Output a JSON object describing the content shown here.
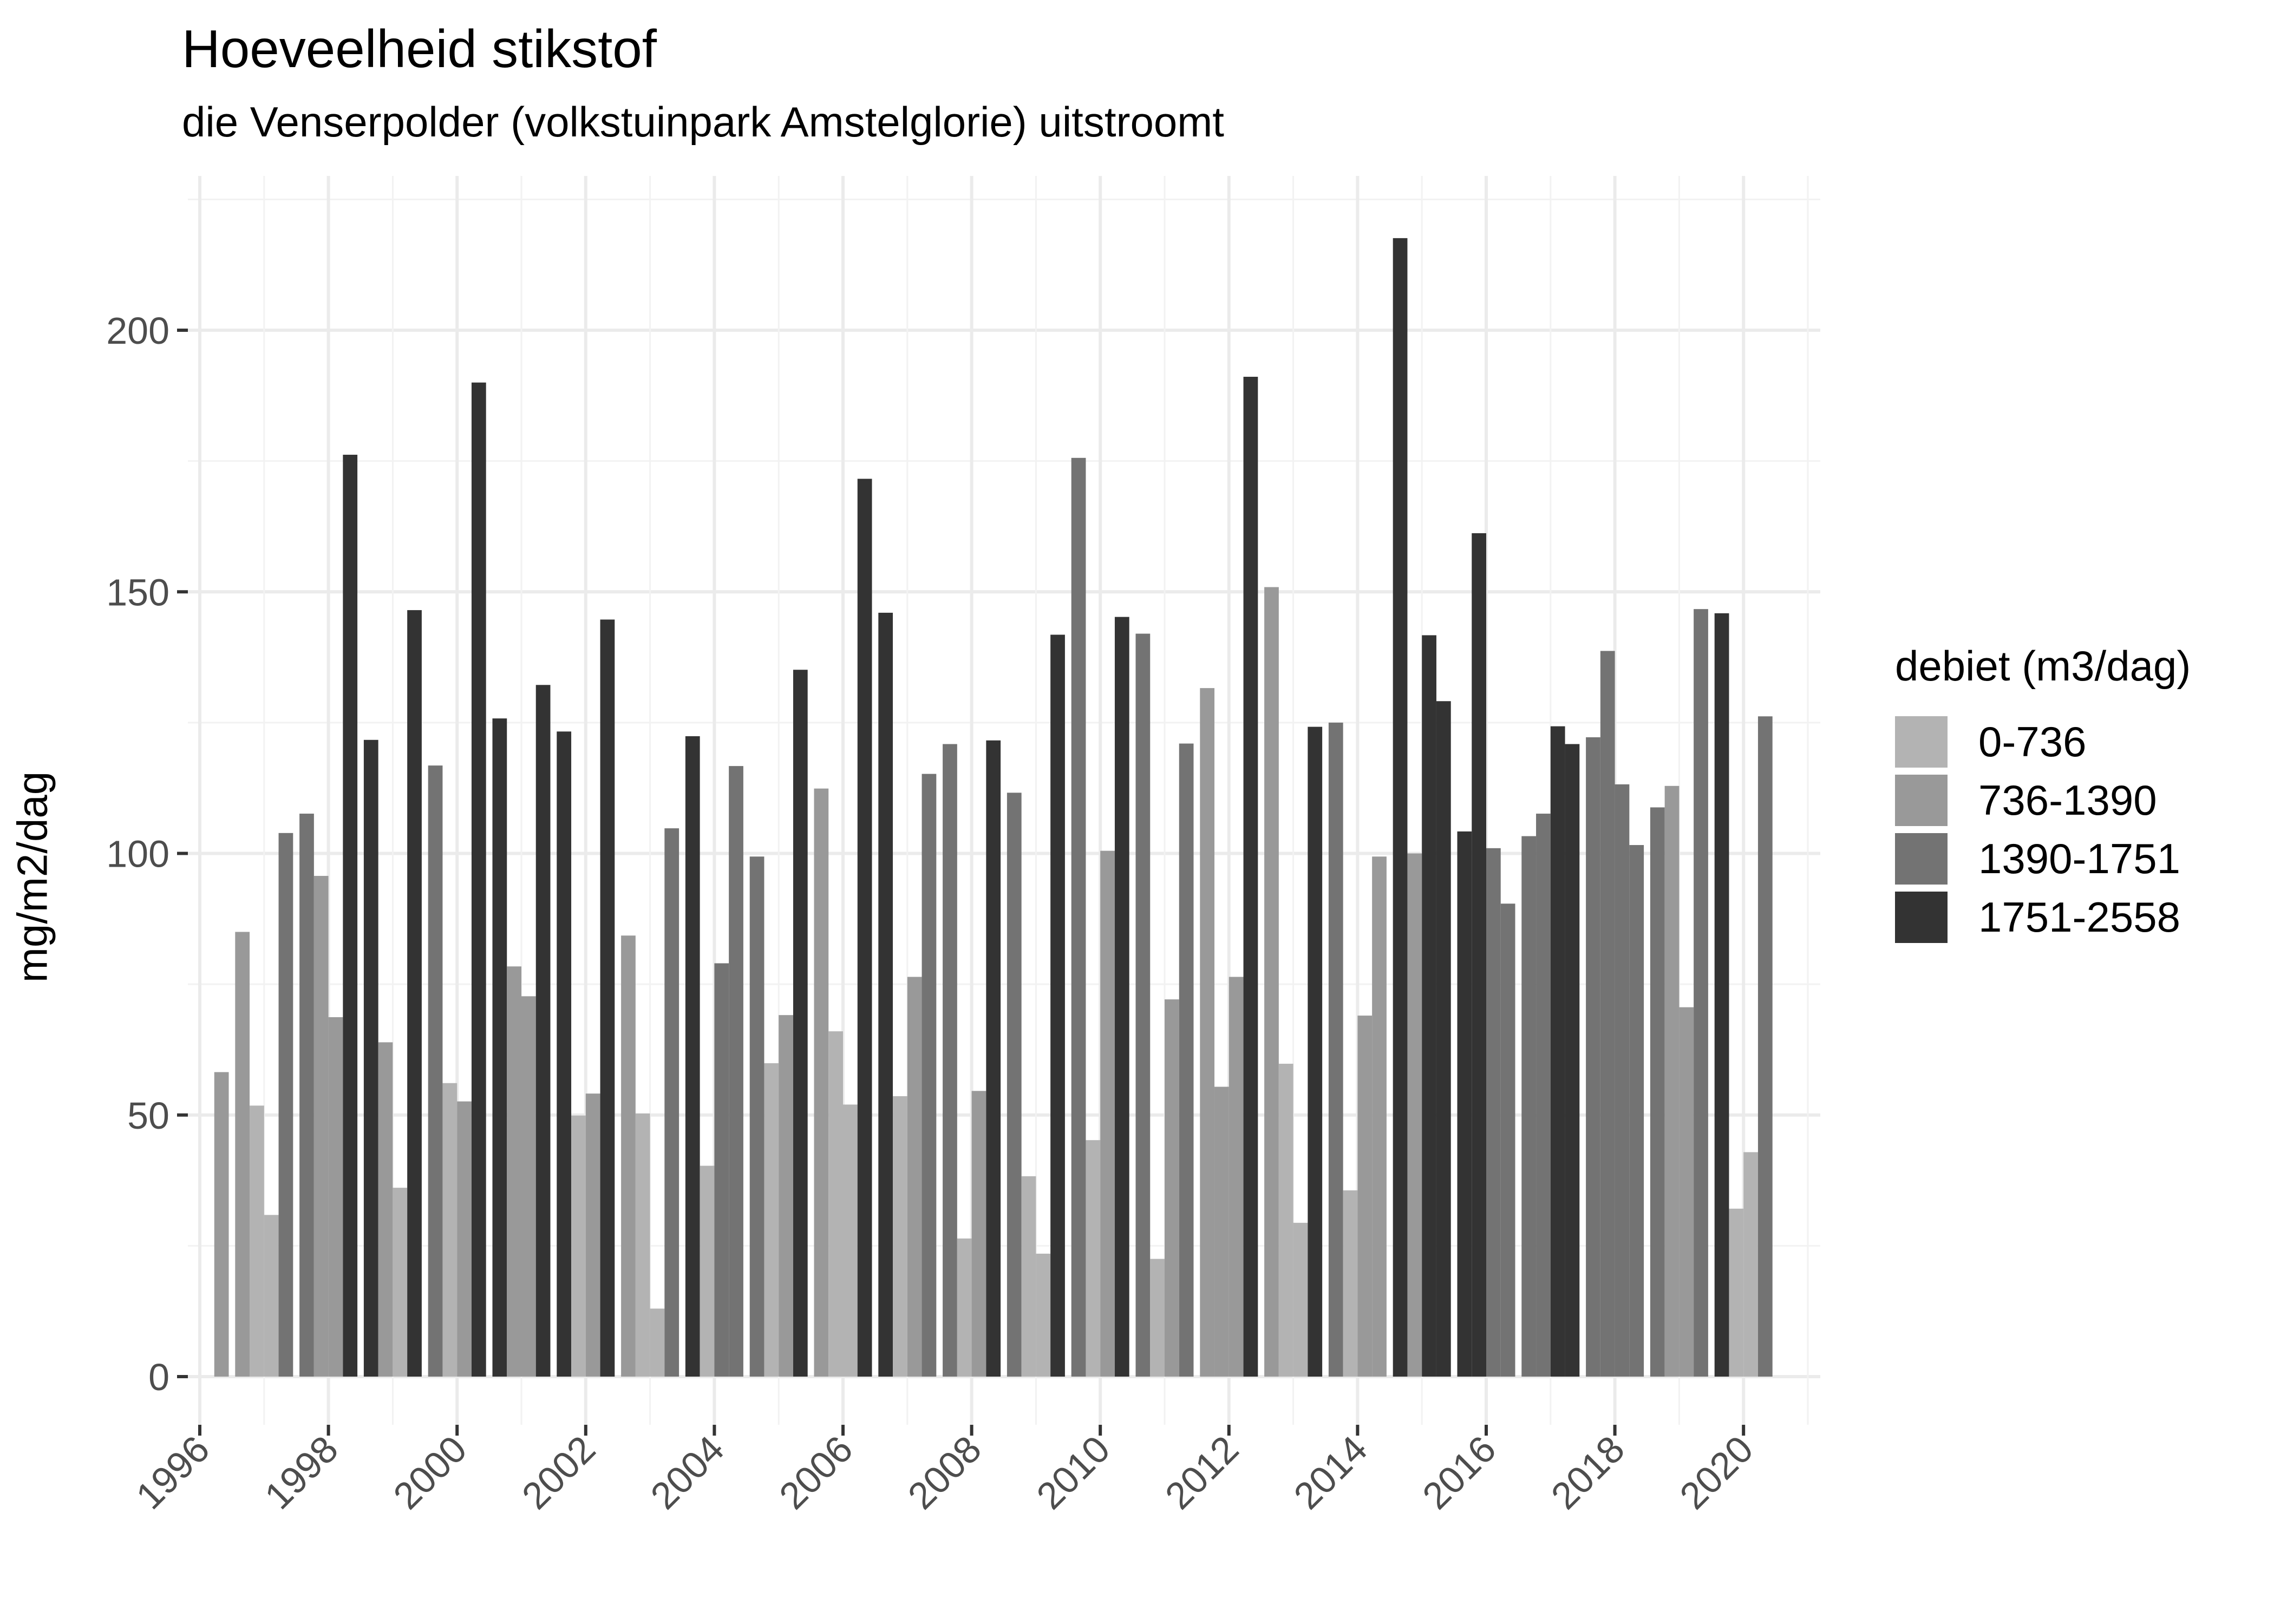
{
  "chart_data": {
    "type": "bar",
    "title": "Hoeveelheid stikstof",
    "subtitle": "die Venserpolder (volkstuinpark Amstelglorie) uitstroomt",
    "xlabel": "",
    "ylabel": "mg/m2/dag",
    "ylim": [
      -12,
      229
    ],
    "yticks": [
      0,
      50,
      100,
      150,
      200
    ],
    "xticks": [
      "1996",
      "1998",
      "2000",
      "2002",
      "2004",
      "2006",
      "2008",
      "2010",
      "2012",
      "2014",
      "2016",
      "2018",
      "2020"
    ],
    "grid": true,
    "legend_position": "right",
    "legend": {
      "title": "debiet (m3/dag)",
      "items": [
        {
          "key": "a",
          "label": "0-736",
          "color": "#b3b3b3"
        },
        {
          "key": "b",
          "label": "736-1390",
          "color": "#999999"
        },
        {
          "key": "c",
          "label": "1390-1751",
          "color": "#737373"
        },
        {
          "key": "d",
          "label": "1751-2558",
          "color": "#333333"
        }
      ]
    },
    "x_unit": "year-quarter",
    "points": [
      {
        "year": 1996,
        "q": 4,
        "value": 58.2,
        "class": "b"
      },
      {
        "year": 1997,
        "q": 1,
        "value": 85.0,
        "class": "b"
      },
      {
        "year": 1997,
        "q": 2,
        "value": 51.8,
        "class": "a"
      },
      {
        "year": 1997,
        "q": 3,
        "value": 30.9,
        "class": "a"
      },
      {
        "year": 1997,
        "q": 4,
        "value": 103.9,
        "class": "c"
      },
      {
        "year": 1998,
        "q": 1,
        "value": 107.6,
        "class": "c"
      },
      {
        "year": 1998,
        "q": 2,
        "value": 95.7,
        "class": "b"
      },
      {
        "year": 1998,
        "q": 3,
        "value": 68.7,
        "class": "b"
      },
      {
        "year": 1998,
        "q": 4,
        "value": 176.2,
        "class": "d"
      },
      {
        "year": 1999,
        "q": 1,
        "value": 121.7,
        "class": "d"
      },
      {
        "year": 1999,
        "q": 2,
        "value": 63.9,
        "class": "b"
      },
      {
        "year": 1999,
        "q": 3,
        "value": 36.1,
        "class": "a"
      },
      {
        "year": 1999,
        "q": 4,
        "value": 146.5,
        "class": "d"
      },
      {
        "year": 2000,
        "q": 1,
        "value": 116.8,
        "class": "c"
      },
      {
        "year": 2000,
        "q": 2,
        "value": 56.1,
        "class": "a"
      },
      {
        "year": 2000,
        "q": 3,
        "value": 52.6,
        "class": "b"
      },
      {
        "year": 2000,
        "q": 4,
        "value": 190.0,
        "class": "d"
      },
      {
        "year": 2001,
        "q": 1,
        "value": 125.8,
        "class": "d"
      },
      {
        "year": 2001,
        "q": 2,
        "value": 78.4,
        "class": "b"
      },
      {
        "year": 2001,
        "q": 3,
        "value": 72.7,
        "class": "b"
      },
      {
        "year": 2001,
        "q": 4,
        "value": 132.2,
        "class": "d"
      },
      {
        "year": 2002,
        "q": 1,
        "value": 123.3,
        "class": "d"
      },
      {
        "year": 2002,
        "q": 2,
        "value": 49.9,
        "class": "a"
      },
      {
        "year": 2002,
        "q": 3,
        "value": 54.1,
        "class": "b"
      },
      {
        "year": 2002,
        "q": 4,
        "value": 144.7,
        "class": "d"
      },
      {
        "year": 2003,
        "q": 1,
        "value": 84.3,
        "class": "b"
      },
      {
        "year": 2003,
        "q": 2,
        "value": 50.3,
        "class": "a"
      },
      {
        "year": 2003,
        "q": 3,
        "value": 13.0,
        "class": "a"
      },
      {
        "year": 2003,
        "q": 4,
        "value": 104.8,
        "class": "c"
      },
      {
        "year": 2004,
        "q": 1,
        "value": 122.4,
        "class": "d"
      },
      {
        "year": 2004,
        "q": 2,
        "value": 40.3,
        "class": "a"
      },
      {
        "year": 2004,
        "q": 3,
        "value": 79.0,
        "class": "c"
      },
      {
        "year": 2004,
        "q": 4,
        "value": 116.7,
        "class": "c"
      },
      {
        "year": 2005,
        "q": 1,
        "value": 99.4,
        "class": "c"
      },
      {
        "year": 2005,
        "q": 2,
        "value": 59.9,
        "class": "a"
      },
      {
        "year": 2005,
        "q": 3,
        "value": 69.1,
        "class": "b"
      },
      {
        "year": 2005,
        "q": 4,
        "value": 135.1,
        "class": "d"
      },
      {
        "year": 2006,
        "q": 1,
        "value": 112.4,
        "class": "b"
      },
      {
        "year": 2006,
        "q": 2,
        "value": 66.0,
        "class": "a"
      },
      {
        "year": 2006,
        "q": 3,
        "value": 52.0,
        "class": "a"
      },
      {
        "year": 2006,
        "q": 4,
        "value": 171.6,
        "class": "d"
      },
      {
        "year": 2007,
        "q": 1,
        "value": 146.0,
        "class": "d"
      },
      {
        "year": 2007,
        "q": 2,
        "value": 53.6,
        "class": "a"
      },
      {
        "year": 2007,
        "q": 3,
        "value": 76.4,
        "class": "b"
      },
      {
        "year": 2007,
        "q": 4,
        "value": 115.2,
        "class": "c"
      },
      {
        "year": 2008,
        "q": 1,
        "value": 120.9,
        "class": "c"
      },
      {
        "year": 2008,
        "q": 2,
        "value": 26.4,
        "class": "a"
      },
      {
        "year": 2008,
        "q": 3,
        "value": 54.6,
        "class": "b"
      },
      {
        "year": 2008,
        "q": 4,
        "value": 121.6,
        "class": "d"
      },
      {
        "year": 2009,
        "q": 1,
        "value": 111.6,
        "class": "c"
      },
      {
        "year": 2009,
        "q": 2,
        "value": 38.3,
        "class": "a"
      },
      {
        "year": 2009,
        "q": 3,
        "value": 23.5,
        "class": "a"
      },
      {
        "year": 2009,
        "q": 4,
        "value": 141.8,
        "class": "d"
      },
      {
        "year": 2010,
        "q": 1,
        "value": 175.6,
        "class": "c"
      },
      {
        "year": 2010,
        "q": 2,
        "value": 45.2,
        "class": "a"
      },
      {
        "year": 2010,
        "q": 3,
        "value": 100.5,
        "class": "b"
      },
      {
        "year": 2010,
        "q": 4,
        "value": 145.2,
        "class": "d"
      },
      {
        "year": 2011,
        "q": 1,
        "value": 142.0,
        "class": "c"
      },
      {
        "year": 2011,
        "q": 2,
        "value": 22.5,
        "class": "a"
      },
      {
        "year": 2011,
        "q": 3,
        "value": 72.1,
        "class": "b"
      },
      {
        "year": 2011,
        "q": 4,
        "value": 121.0,
        "class": "c"
      },
      {
        "year": 2012,
        "q": 1,
        "value": 131.6,
        "class": "b"
      },
      {
        "year": 2012,
        "q": 2,
        "value": 55.4,
        "class": "b"
      },
      {
        "year": 2012,
        "q": 3,
        "value": 76.4,
        "class": "b"
      },
      {
        "year": 2012,
        "q": 4,
        "value": 191.1,
        "class": "d"
      },
      {
        "year": 2013,
        "q": 1,
        "value": 150.9,
        "class": "b"
      },
      {
        "year": 2013,
        "q": 2,
        "value": 59.8,
        "class": "a"
      },
      {
        "year": 2013,
        "q": 3,
        "value": 29.4,
        "class": "a"
      },
      {
        "year": 2013,
        "q": 4,
        "value": 124.2,
        "class": "d"
      },
      {
        "year": 2014,
        "q": 1,
        "value": 125.0,
        "class": "c"
      },
      {
        "year": 2014,
        "q": 2,
        "value": 35.6,
        "class": "a"
      },
      {
        "year": 2014,
        "q": 3,
        "value": 69.0,
        "class": "b"
      },
      {
        "year": 2014,
        "q": 4,
        "value": 99.4,
        "class": "b"
      },
      {
        "year": 2015,
        "q": 1,
        "value": 217.6,
        "class": "d"
      },
      {
        "year": 2015,
        "q": 2,
        "value": 100.0,
        "class": "b"
      },
      {
        "year": 2015,
        "q": 3,
        "value": 141.7,
        "class": "d"
      },
      {
        "year": 2015,
        "q": 4,
        "value": 129.1,
        "class": "d"
      },
      {
        "year": 2016,
        "q": 1,
        "value": 104.2,
        "class": "d"
      },
      {
        "year": 2016,
        "q": 2,
        "value": 161.2,
        "class": "d"
      },
      {
        "year": 2016,
        "q": 3,
        "value": 101.0,
        "class": "c"
      },
      {
        "year": 2016,
        "q": 4,
        "value": 90.4,
        "class": "c"
      },
      {
        "year": 2017,
        "q": 1,
        "value": 103.3,
        "class": "c"
      },
      {
        "year": 2017,
        "q": 2,
        "value": 107.6,
        "class": "c"
      },
      {
        "year": 2017,
        "q": 3,
        "value": 124.3,
        "class": "d"
      },
      {
        "year": 2017,
        "q": 4,
        "value": 120.9,
        "class": "d"
      },
      {
        "year": 2018,
        "q": 1,
        "value": 122.2,
        "class": "c"
      },
      {
        "year": 2018,
        "q": 2,
        "value": 138.7,
        "class": "c"
      },
      {
        "year": 2018,
        "q": 3,
        "value": 113.2,
        "class": "c"
      },
      {
        "year": 2018,
        "q": 4,
        "value": 101.6,
        "class": "c"
      },
      {
        "year": 2019,
        "q": 1,
        "value": 108.8,
        "class": "c"
      },
      {
        "year": 2019,
        "q": 2,
        "value": 112.9,
        "class": "b"
      },
      {
        "year": 2019,
        "q": 3,
        "value": 70.6,
        "class": "b"
      },
      {
        "year": 2019,
        "q": 4,
        "value": 146.7,
        "class": "c"
      },
      {
        "year": 2020,
        "q": 1,
        "value": 145.9,
        "class": "d"
      },
      {
        "year": 2020,
        "q": 2,
        "value": 32.1,
        "class": "a"
      },
      {
        "year": 2020,
        "q": 3,
        "value": 42.9,
        "class": "a"
      },
      {
        "year": 2020,
        "q": 4,
        "value": 126.2,
        "class": "c"
      }
    ]
  },
  "colors": {
    "grid_major": "#ebebeb",
    "grid_minor": "#f2f2f2",
    "tick_text": "#4d4d4d",
    "tick_mark": "#333333"
  }
}
